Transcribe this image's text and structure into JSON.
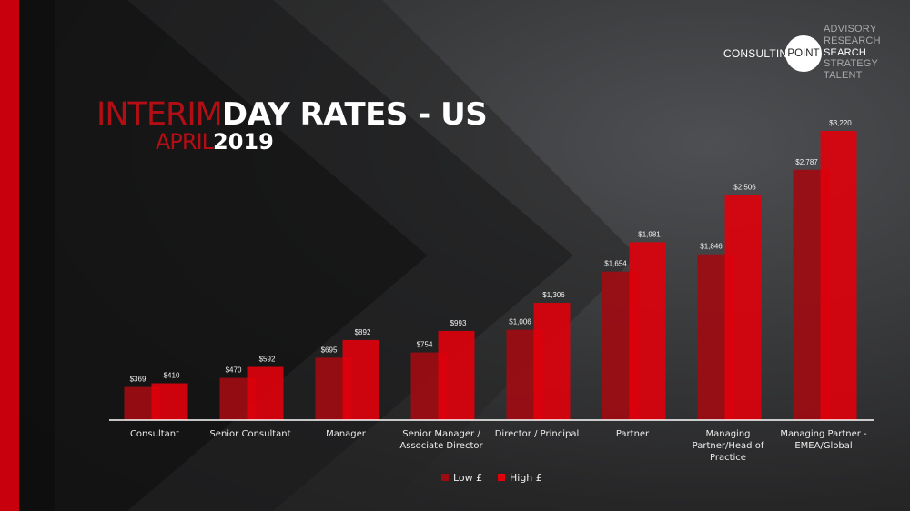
{
  "title": {
    "light": "INTERIM",
    "bold": "DAY RATES - US",
    "sub_light": "APRIL",
    "sub_bold": "2019"
  },
  "logo": {
    "word": "CONSULTING",
    "circle": "POINT",
    "services": [
      "ADVISORY",
      "RESEARCH",
      "SEARCH",
      "STRATEGY",
      "TALENT"
    ],
    "active_service": "SEARCH"
  },
  "colors": {
    "accent": "#c8000d",
    "low": "#9e0c12",
    "high": "#e0000b",
    "axis": "#ffffff"
  },
  "chart_data": {
    "type": "bar",
    "categories": [
      [
        "Consultant"
      ],
      [
        "Senior Consultant"
      ],
      [
        "Manager"
      ],
      [
        "Senior Manager /",
        "Associate Director"
      ],
      [
        "Director / Principal"
      ],
      [
        "Partner"
      ],
      [
        "Managing",
        "Partner/Head of",
        "Practice"
      ],
      [
        "Managing Partner -",
        "EMEA/Global"
      ]
    ],
    "series": [
      {
        "name": "Low £",
        "values": [
          369,
          470,
          695,
          754,
          1006,
          1654,
          1846,
          2787
        ],
        "labels": [
          "$369",
          "$470",
          "$695",
          "$754",
          "$1,006",
          "$1,654",
          "$1,846",
          "$2,787"
        ]
      },
      {
        "name": "High £",
        "values": [
          410,
          592,
          892,
          993,
          1306,
          1981,
          2506,
          3220
        ],
        "labels": [
          "$410",
          "$592",
          "$892",
          "$993",
          "$1,306",
          "$1,981",
          "$2,506",
          "$3,220"
        ]
      }
    ],
    "legend_position": "bottom",
    "grid": false
  }
}
